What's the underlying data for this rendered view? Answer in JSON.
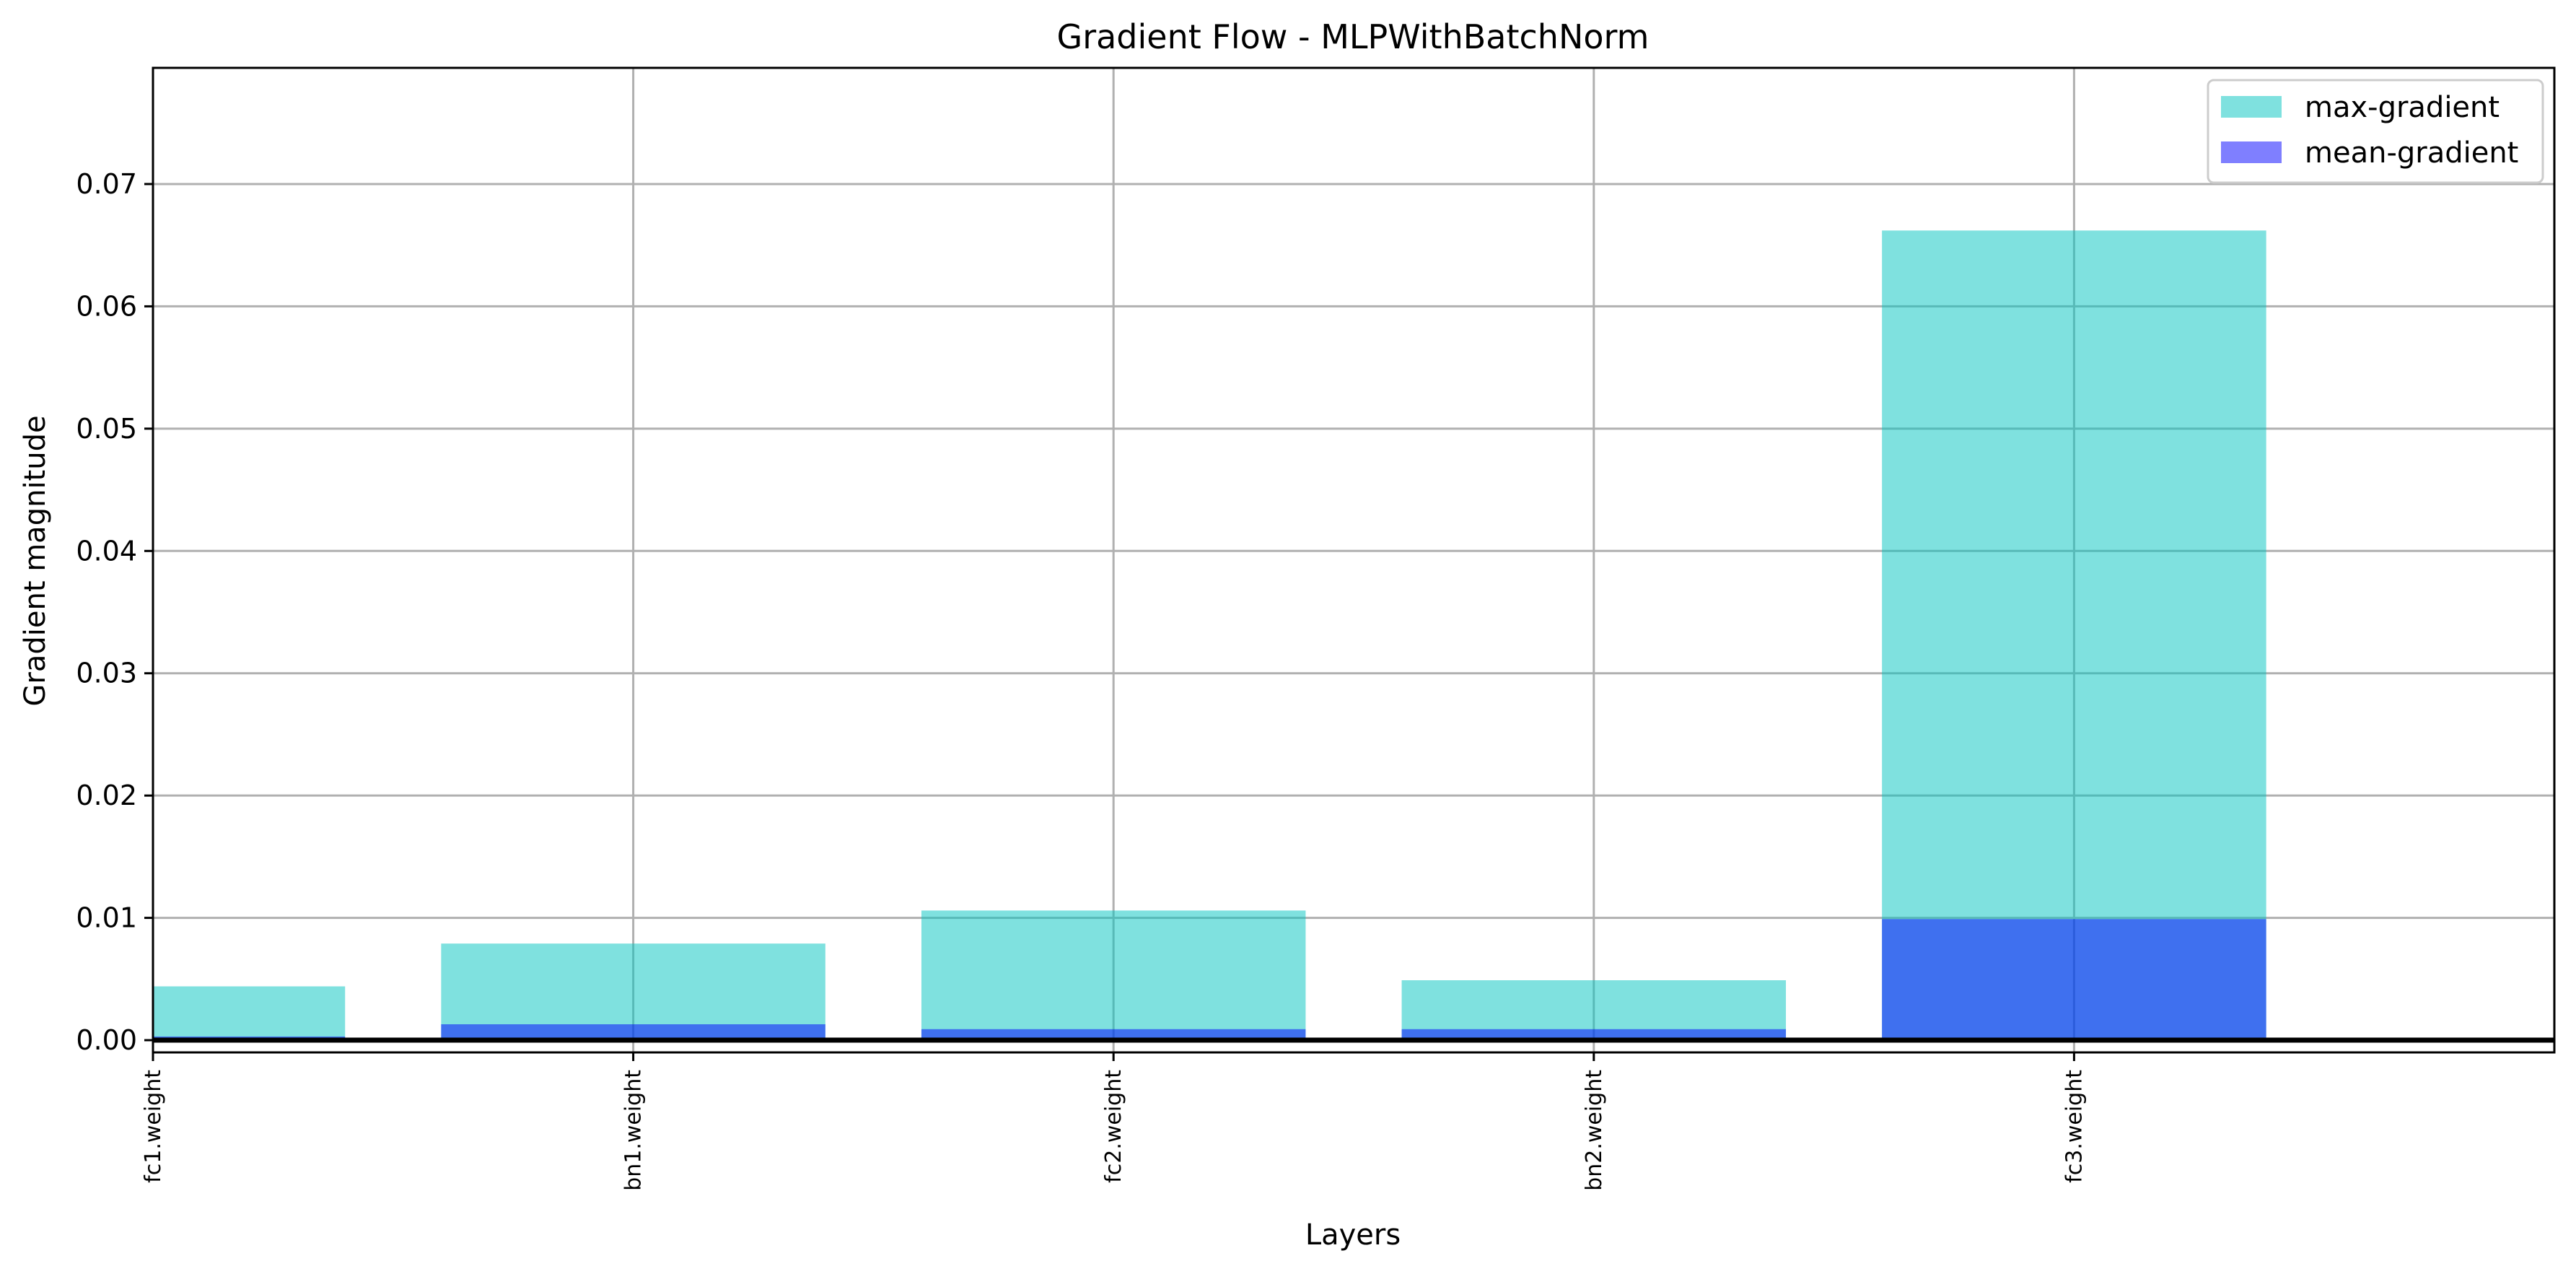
{
  "chart_data": {
    "type": "bar",
    "title": "Gradient Flow - MLPWithBatchNorm",
    "xlabel": "Layers",
    "ylabel": "Gradient magnitude",
    "categories": [
      "fc1.weight",
      "bn1.weight",
      "fc2.weight",
      "bn2.weight",
      "fc3.weight"
    ],
    "series": [
      {
        "name": "max-gradient",
        "color": "#00c4c0",
        "opacity": 0.5,
        "values": [
          0.0044,
          0.0079,
          0.0106,
          0.0049,
          0.0662
        ]
      },
      {
        "name": "mean-gradient",
        "color": "#0000ff",
        "opacity": 0.5,
        "values": [
          0.0003,
          0.0013,
          0.0009,
          0.0009,
          0.0099
        ]
      }
    ],
    "ylim": [
      -0.001,
      0.0795
    ],
    "xlim": [
      0,
      5
    ],
    "yticks": [
      0.0,
      0.01,
      0.02,
      0.03,
      0.04,
      0.05,
      0.06,
      0.07
    ],
    "ytick_labels": [
      "0.00",
      "0.01",
      "0.02",
      "0.03",
      "0.04",
      "0.05",
      "0.06",
      "0.07"
    ],
    "grid": true,
    "horizontal_line_at": 0,
    "legend": "upper right"
  }
}
